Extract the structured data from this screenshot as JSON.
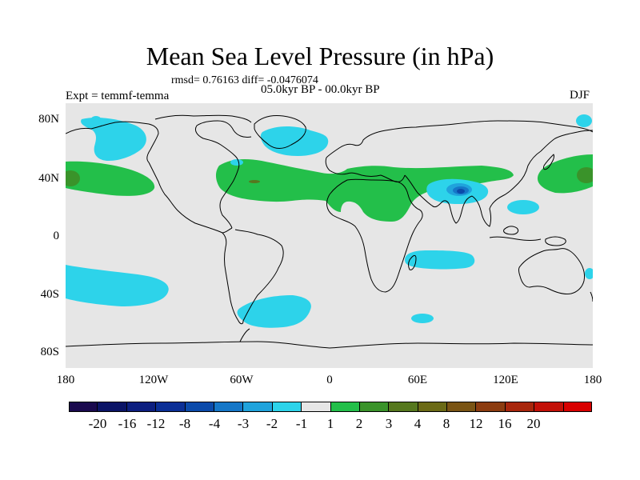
{
  "title": "Mean Sea Level Pressure (in hPa)",
  "stats": "rmsd= 0.76163 diff= -0.0476074",
  "period": "05.0kyr BP - 00.0kyr BP",
  "experiment": "Expt = temmf-temma",
  "season": "DJF",
  "map": {
    "background_color": "#e6e6e6",
    "coastline_color": "#000000",
    "y_axis_labels": [
      "80N",
      "40N",
      "0",
      "40S",
      "80S"
    ],
    "x_axis_labels": [
      "180",
      "120W",
      "60W",
      "0",
      "60E",
      "120E",
      "180"
    ],
    "anomaly_regions": [
      {
        "label": "North Pacific high",
        "level": "1 to 2"
      },
      {
        "label": "Northeast Pacific low",
        "level": "-2 to -1"
      },
      {
        "label": "North Atlantic high",
        "level": "1 to 2"
      },
      {
        "label": "Greenland-Norwegian Sea low",
        "level": "-2 to -1"
      },
      {
        "label": "Mediterranean-Central Asia high",
        "level": "1 to 2"
      },
      {
        "label": "Tibetan Plateau low",
        "level": "-8 to -3"
      },
      {
        "label": "Subtropical Indian Ocean low",
        "level": "-2 to -1"
      },
      {
        "label": "South Pacific low",
        "level": "-2 to -1"
      },
      {
        "label": "South Atlantic low",
        "level": "-2 to -1"
      }
    ]
  },
  "colorbar": {
    "colors": [
      "#1a0a4e",
      "#0b1466",
      "#0d1f80",
      "#0b2f96",
      "#0b4aaa",
      "#1577c8",
      "#20a3dc",
      "#2dd3ea",
      "#e6e6e6",
      "#23bf4a",
      "#3a932a",
      "#56781e",
      "#6b6a16",
      "#7a5414",
      "#8c3c10",
      "#a8260c",
      "#c21008",
      "#d80000"
    ],
    "labels": [
      "-20",
      "-16",
      "-12",
      "-8",
      "-4",
      "-3",
      "-2",
      "-1",
      "1",
      "2",
      "3",
      "4",
      "8",
      "12",
      "16",
      "20"
    ]
  }
}
